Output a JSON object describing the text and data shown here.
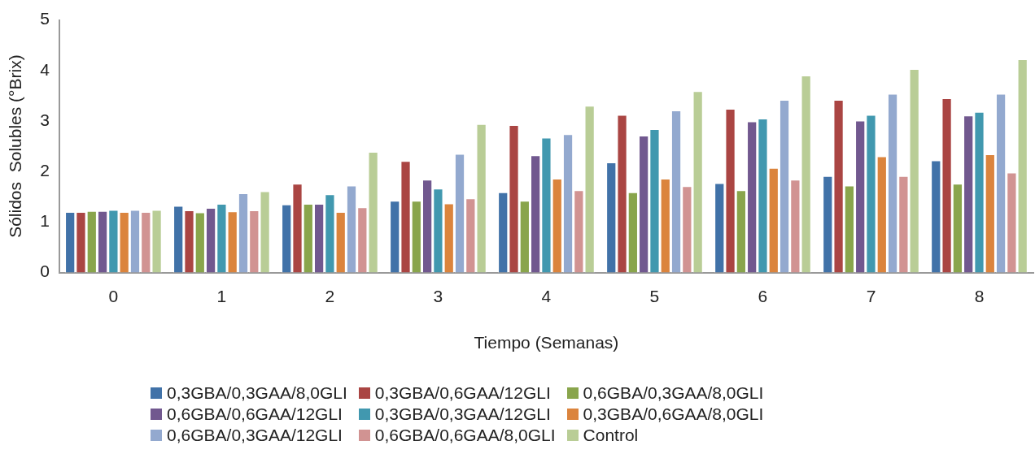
{
  "chart_data": {
    "type": "bar",
    "xlabel": "Tiempo (Semanas)",
    "ylabel": "Sólidos  Solubles (°Brix)",
    "categories": [
      "0",
      "1",
      "2",
      "3",
      "4",
      "5",
      "6",
      "7",
      "8"
    ],
    "ylim": [
      0,
      5
    ],
    "yticks": [
      0,
      1,
      2,
      3,
      4,
      5
    ],
    "grid": false,
    "legend": "bottom",
    "series": [
      {
        "name": "0,3GBA/0,3GAA/8,0GLI",
        "color": "#4172a8",
        "values": [
          1.2,
          1.32,
          1.35,
          1.42,
          1.59,
          2.18,
          1.77,
          1.91,
          2.22
        ]
      },
      {
        "name": "0,3GBA/0,6GAA/12GLI",
        "color": "#aa4543",
        "values": [
          1.2,
          1.23,
          1.76,
          2.21,
          2.92,
          3.12,
          3.24,
          3.42,
          3.45
        ]
      },
      {
        "name": "0,6GBA/0,3GAA/8,0GLI",
        "color": "#89a54c",
        "values": [
          1.22,
          1.19,
          1.36,
          1.42,
          1.42,
          1.59,
          1.63,
          1.72,
          1.76
        ]
      },
      {
        "name": "0,6GBA/0,6GAA/12GLI",
        "color": "#71588f",
        "values": [
          1.22,
          1.28,
          1.36,
          1.84,
          2.32,
          2.71,
          2.99,
          3.01,
          3.11
        ]
      },
      {
        "name": "0,3GBA/0,3GAA/12GLI",
        "color": "#4198af",
        "values": [
          1.24,
          1.36,
          1.55,
          1.66,
          2.67,
          2.84,
          3.05,
          3.12,
          3.18
        ]
      },
      {
        "name": "0,3GBA/0,6GAA/8,0GLI",
        "color": "#db843d",
        "values": [
          1.2,
          1.21,
          1.2,
          1.37,
          1.86,
          1.86,
          2.07,
          2.3,
          2.34
        ]
      },
      {
        "name": "0,6GBA/0,3GAA/12GLI",
        "color": "#93a9cf",
        "values": [
          1.24,
          1.57,
          1.72,
          2.35,
          2.74,
          3.21,
          3.42,
          3.54,
          3.54
        ]
      },
      {
        "name": "0,6GBA/0,6GAA/8,0GLI",
        "color": "#d19392",
        "values": [
          1.2,
          1.23,
          1.29,
          1.47,
          1.63,
          1.71,
          1.84,
          1.91,
          1.98
        ]
      },
      {
        "name": "Control",
        "color": "#b9cd96",
        "values": [
          1.24,
          1.61,
          2.39,
          2.94,
          3.3,
          3.59,
          3.9,
          4.03,
          4.22
        ]
      }
    ]
  }
}
